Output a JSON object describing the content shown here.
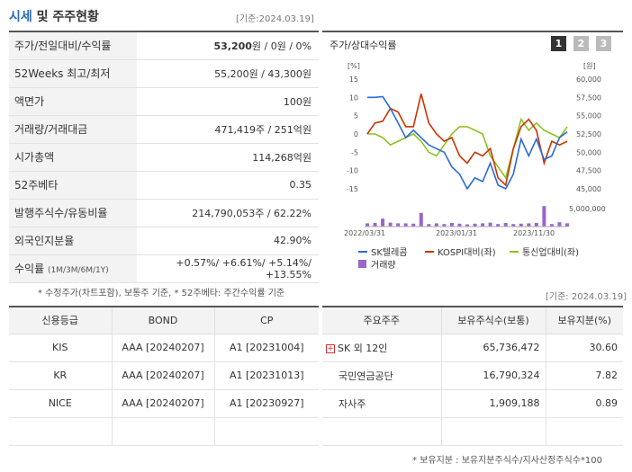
{
  "section": {
    "title_colored": "시세",
    "title_rest": " 및 주주현황",
    "date": "[기준:2024.03.19]"
  },
  "quote_rows": [
    {
      "label": "주가/전일대비/수익률",
      "value_bold": "53,200",
      "value_rest": "원 / 0원 / 0%"
    },
    {
      "label": "52Weeks 최고/최저",
      "value": "55,200원 / 43,300원"
    },
    {
      "label": "액면가",
      "value": "100원"
    },
    {
      "label": "거래량/거래대금",
      "value": "471,419주 / 251억원"
    },
    {
      "label": "시가총액",
      "value": "114,268억원"
    },
    {
      "label": "52주베타",
      "value": "0.35"
    },
    {
      "label": "발행주식수/유동비율",
      "value": "214,790,053주 / 62.22%"
    },
    {
      "label": "외국인지분율",
      "value": "42.90%"
    },
    {
      "label": "수익률",
      "label_sub": "(1M/3M/6M/1Y)",
      "value": "+0.57%/ +6.61%/ +5.14%/ +13.55%"
    }
  ],
  "quote_note": "* 수정주가(차트포함), 보통주 기준, * 52주베타: 주간수익률 기준",
  "chart": {
    "title": "주가/상대수익률",
    "period_buttons": [
      "1",
      "2",
      "3"
    ],
    "active_period": "1",
    "left_unit": "[%]",
    "right_unit": "[원]",
    "left_ticks": [
      "15",
      "10",
      "5",
      "0",
      "-5",
      "-10",
      "-15"
    ],
    "right_ticks": [
      "60,000",
      "57,500",
      "55,000",
      "52,500",
      "50,000",
      "47,500",
      "45,000"
    ],
    "volume_tick": "5,000,000",
    "x_ticks": [
      "2022/03/31",
      "2023/01/31",
      "2023/11/30"
    ],
    "legend": [
      "SK텔레콤",
      "KOSPI대비(좌)",
      "통신업대비(좌)",
      "거래량"
    ],
    "colors": {
      "price": "#2a6ad6",
      "kospi": "#cc3300",
      "telecom": "#8dc21f",
      "volume": "#9966cc"
    }
  },
  "chart_data": {
    "type": "line",
    "series": [
      {
        "name": "SK텔레콤",
        "axis": "right",
        "values": [
          57500,
          57500,
          57600,
          56000,
          54000,
          52000,
          53000,
          52000,
          51000,
          50500,
          50000,
          48000,
          47000,
          45000,
          46500,
          46000,
          48500,
          45500,
          45000,
          47000,
          51800,
          49500,
          51800,
          49000,
          49500,
          52000,
          52800
        ]
      },
      {
        "name": "KOSPI대비(좌)",
        "axis": "left",
        "values": [
          0,
          3,
          3.5,
          7,
          6,
          2,
          2,
          11,
          3,
          0,
          -2,
          -1,
          -6,
          -8,
          -5,
          -6,
          -4,
          -12,
          -14,
          -4,
          2,
          4,
          1,
          -8,
          -2,
          -3,
          -2
        ]
      },
      {
        "name": "통신업대비(좌)",
        "axis": "left",
        "values": [
          0,
          0,
          -1,
          -3,
          -2,
          -1,
          0,
          -2,
          -5,
          -6,
          -3,
          0,
          2,
          2,
          1,
          0,
          -6,
          -9,
          -12,
          -4,
          4,
          1,
          3,
          1,
          0,
          -1,
          2
        ]
      },
      {
        "name": "거래량",
        "axis": "volume",
        "values": [
          900000,
          1000000,
          2200000,
          1100000,
          900000,
          900000,
          800000,
          3800000,
          700000,
          900000,
          700000,
          1000000,
          800000,
          600000,
          800000,
          900000,
          1100000,
          700000,
          1000000,
          700000,
          800000,
          900000,
          1000000,
          5700000,
          700000,
          1200000,
          900000
        ]
      }
    ],
    "ylim_left": [
      -15,
      15
    ],
    "ylim_right": [
      45000,
      60000
    ],
    "ylim_volume": [
      0,
      5000000
    ]
  },
  "ref_date2": "[기준: 2024.03.19]",
  "credit": {
    "headers": [
      "신용등급",
      "BOND",
      "CP"
    ],
    "rows": [
      [
        "KIS",
        "AAA   [20240207]",
        "A1   [20231004]"
      ],
      [
        "KR",
        "AAA   [20240207]",
        "A1   [20231013]"
      ],
      [
        "NICE",
        "AAA   [20240207]",
        "A1   [20230927]"
      ]
    ]
  },
  "holders": {
    "headers": [
      "주요주주",
      "보유주식수(보통)",
      "보유지분(%)"
    ],
    "rows": [
      [
        "SK 외 12인",
        "65,736,472",
        "30.60"
      ],
      [
        "국민연금공단",
        "16,790,324",
        "7.82"
      ],
      [
        "자사주",
        "1,909,188",
        "0.89"
      ]
    ],
    "note": "* 보유지분 : 보유지분주식수/지사산정주식수*100"
  }
}
